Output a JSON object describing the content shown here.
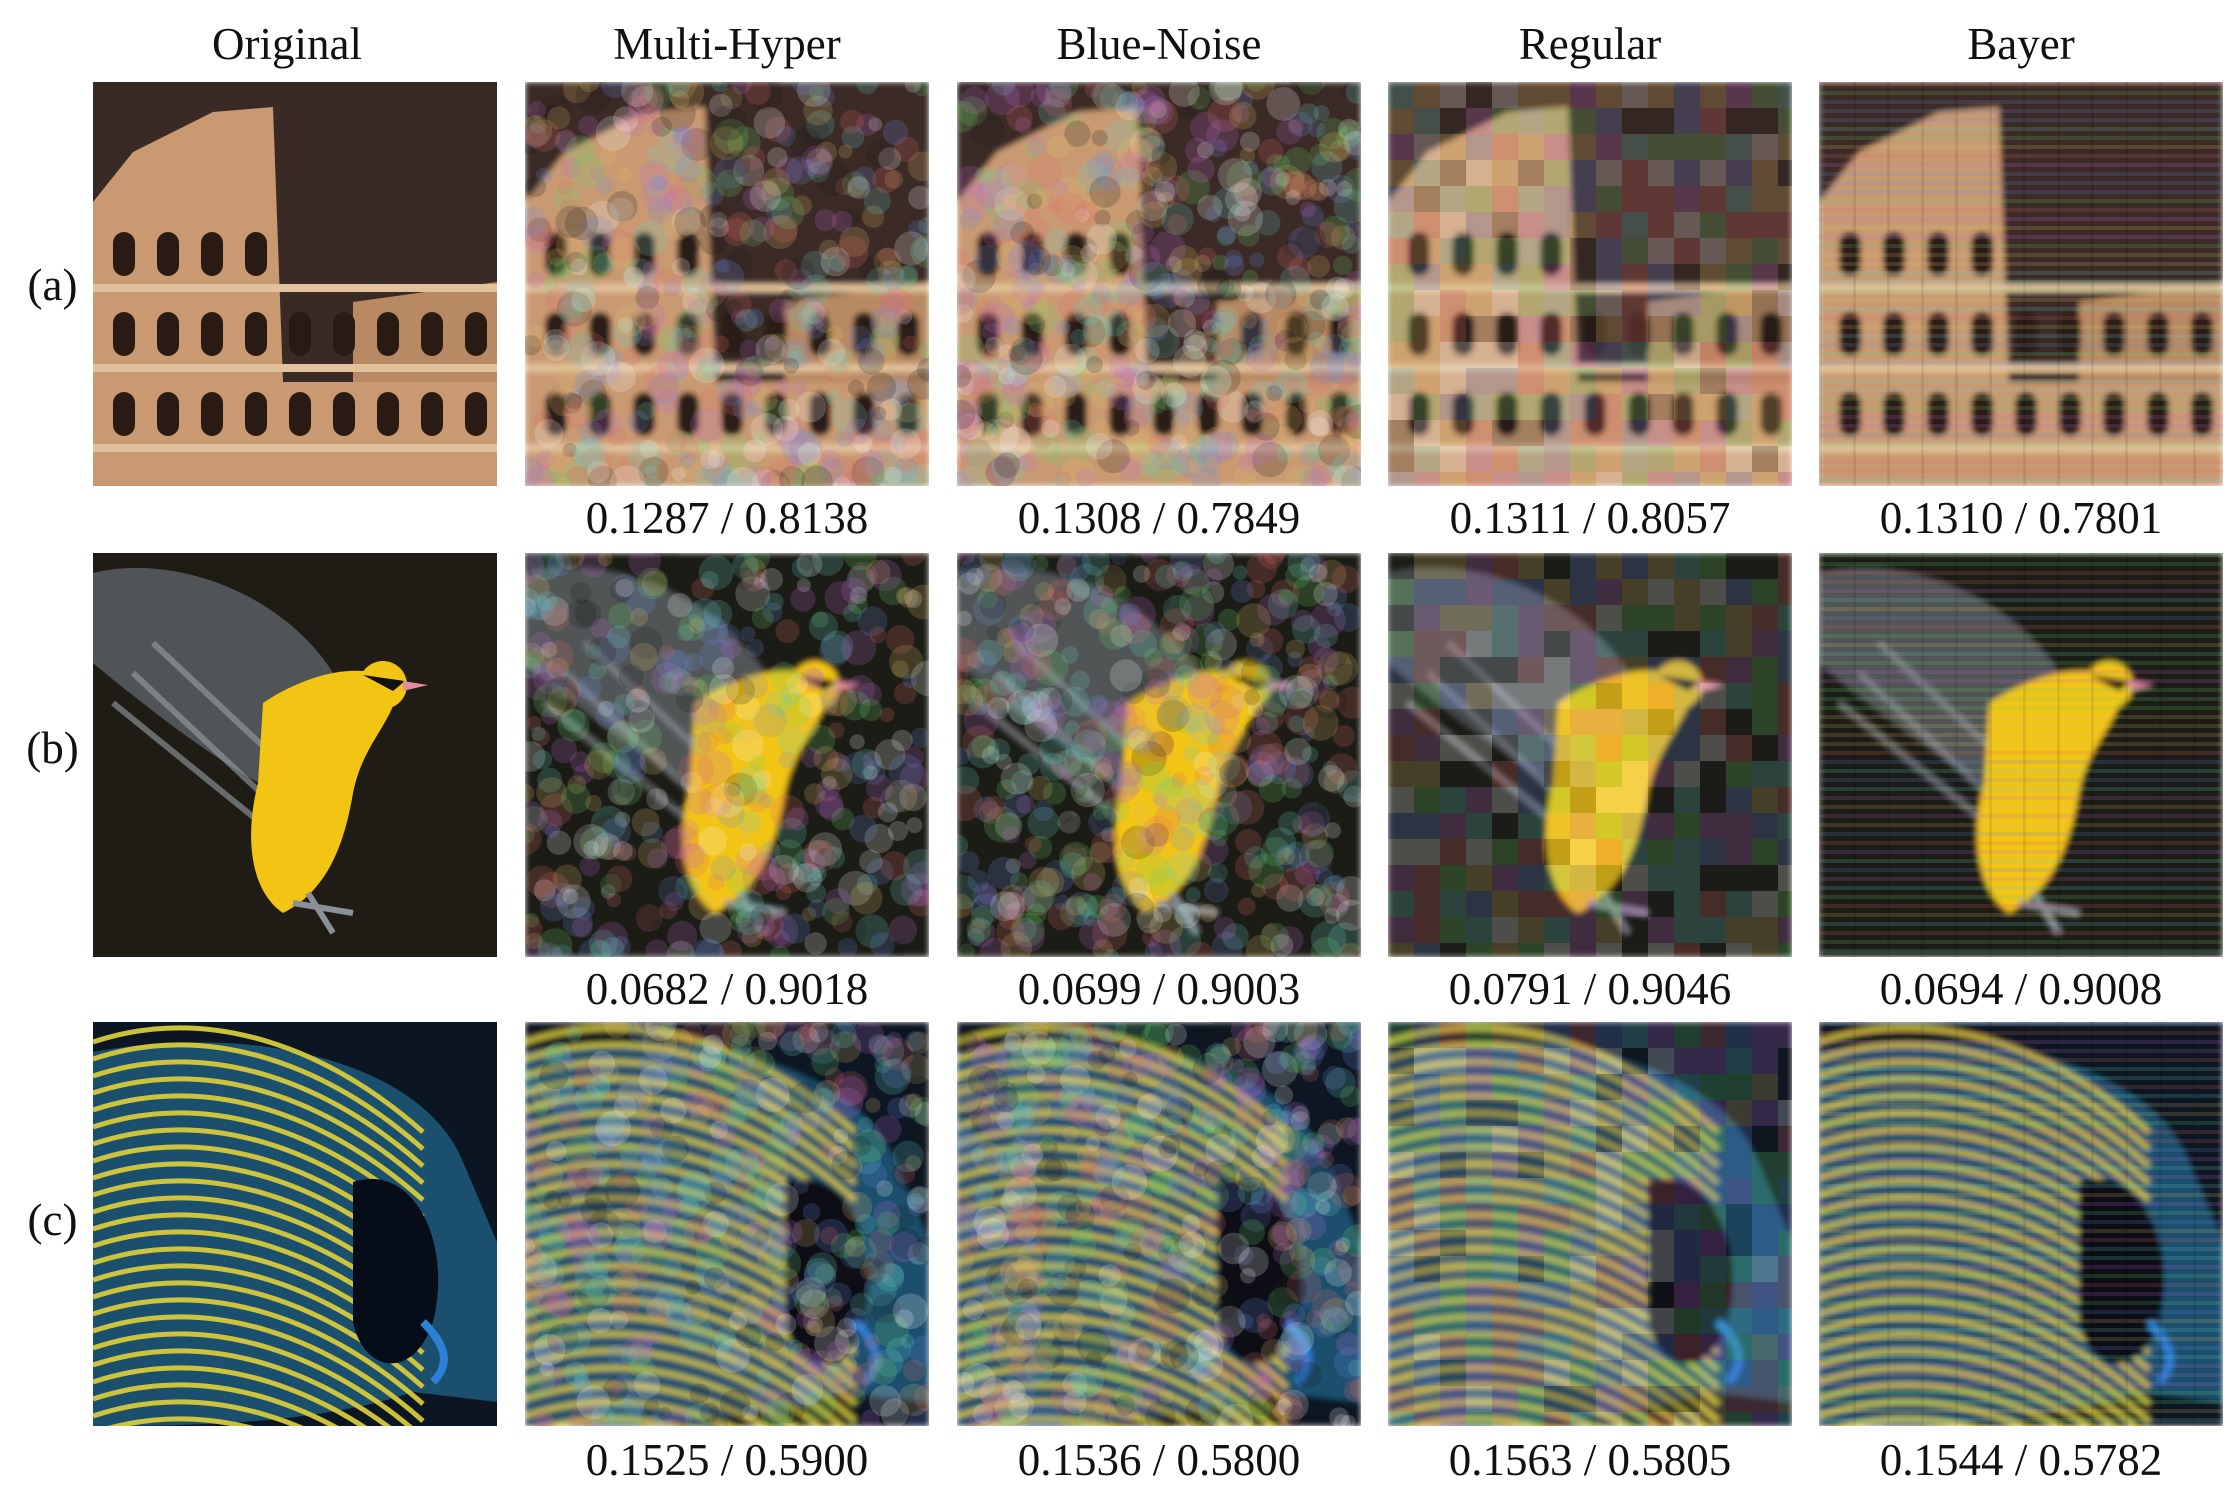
{
  "columns": [
    "Original",
    "Multi-Hyper",
    "Blue-Noise",
    "Regular",
    "Bayer"
  ],
  "rows": [
    {
      "label": "(a)",
      "subject": "colosseum",
      "metrics": [
        "0.1287 / 0.8138",
        "0.1308 / 0.7849",
        "0.1311 / 0.8057",
        "0.1310 / 0.7801"
      ]
    },
    {
      "label": "(b)",
      "subject": "yellow-bird",
      "metrics": [
        "0.0682 / 0.9018",
        "0.0699 / 0.9003",
        "0.0791 / 0.9046",
        "0.0694 / 0.9008"
      ]
    },
    {
      "label": "(c)",
      "subject": "angelfish",
      "metrics": [
        "0.1525 / 0.5900",
        "0.1536 / 0.5800",
        "0.1563 / 0.5805",
        "0.1544 / 0.5782"
      ]
    }
  ],
  "colors": {
    "colosseum_sky": "#3a2a26",
    "colosseum_stone": "#c99a72",
    "bird_bg": "#1f1c16",
    "bird_yellow": "#f2c414",
    "fish_blue": "#1a4f6e",
    "fish_yellow": "#d7c93a"
  }
}
